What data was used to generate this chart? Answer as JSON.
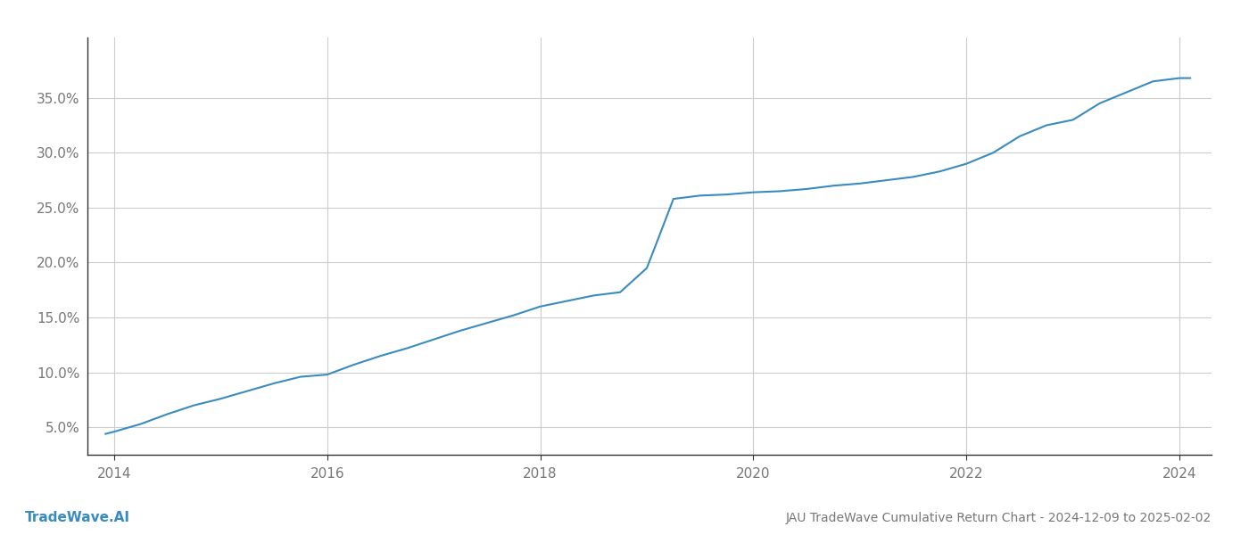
{
  "title": "JAU TradeWave Cumulative Return Chart - 2024-12-09 to 2025-02-02",
  "watermark": "TradeWave.AI",
  "line_color": "#3a8bbf",
  "background_color": "#ffffff",
  "grid_color": "#cccccc",
  "x_years": [
    2013.92,
    2014.0,
    2014.25,
    2014.5,
    2014.75,
    2015.0,
    2015.25,
    2015.5,
    2015.75,
    2016.0,
    2016.25,
    2016.5,
    2016.75,
    2017.0,
    2017.25,
    2017.5,
    2017.75,
    2018.0,
    2018.25,
    2018.5,
    2018.75,
    2019.0,
    2019.1,
    2019.25,
    2019.5,
    2019.75,
    2020.0,
    2020.25,
    2020.5,
    2020.75,
    2021.0,
    2021.25,
    2021.5,
    2021.75,
    2022.0,
    2022.25,
    2022.5,
    2022.75,
    2023.0,
    2023.25,
    2023.5,
    2023.75,
    2024.0,
    2024.1
  ],
  "y_values": [
    0.044,
    0.046,
    0.053,
    0.062,
    0.07,
    0.076,
    0.083,
    0.09,
    0.096,
    0.098,
    0.107,
    0.115,
    0.122,
    0.13,
    0.138,
    0.145,
    0.152,
    0.16,
    0.165,
    0.17,
    0.173,
    0.195,
    0.22,
    0.258,
    0.261,
    0.262,
    0.264,
    0.265,
    0.267,
    0.27,
    0.272,
    0.275,
    0.278,
    0.283,
    0.29,
    0.3,
    0.315,
    0.325,
    0.33,
    0.345,
    0.355,
    0.365,
    0.368,
    0.368
  ],
  "yticks": [
    0.05,
    0.1,
    0.15,
    0.2,
    0.25,
    0.3,
    0.35
  ],
  "ytick_labels": [
    "5.0%",
    "10.0%",
    "15.0%",
    "20.0%",
    "25.0%",
    "30.0%",
    "35.0%"
  ],
  "xticks": [
    2014,
    2016,
    2018,
    2020,
    2022,
    2024
  ],
  "xlim": [
    2013.75,
    2024.3
  ],
  "ylim": [
    0.025,
    0.405
  ],
  "title_fontsize": 10,
  "tick_fontsize": 11,
  "watermark_fontsize": 11,
  "line_width": 1.5
}
